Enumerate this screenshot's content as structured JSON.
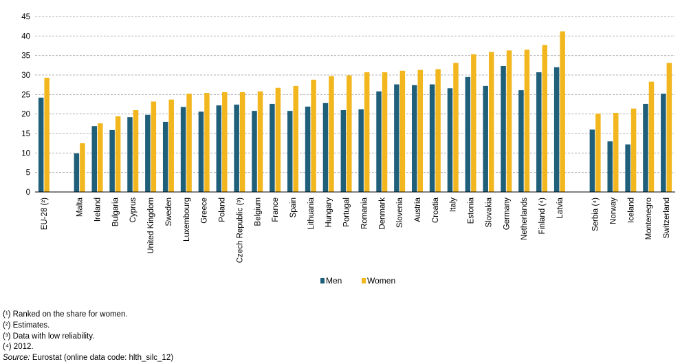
{
  "chart_data": {
    "type": "bar",
    "title": "",
    "xlabel": "",
    "ylabel": "",
    "ylim": [
      0,
      45
    ],
    "yticks": [
      0,
      5,
      10,
      15,
      20,
      25,
      30,
      35,
      40,
      45
    ],
    "grid": true,
    "legend_position": "bottom-center",
    "categories": [
      "EU-28 (²)",
      "Malta",
      "Ireland",
      "Bulgaria",
      "Cyprus",
      "United Kingdom",
      "Sweden",
      "Luxembourg",
      "Greece",
      "Poland",
      "Czech Republic (³)",
      "Belgium",
      "France",
      "Spain",
      "Lithuania",
      "Hungary",
      "Portugal",
      "Romania",
      "Denmark",
      "Slovenia",
      "Austria",
      "Croatia",
      "Italy",
      "Estonia",
      "Slovakia",
      "Germany",
      "Netherlands",
      "Finland (⁴)",
      "Latvia",
      "Serbia (⁴)",
      "Norway",
      "Iceland",
      "Montenegro",
      "Switzerland"
    ],
    "group_breaks_after": [
      "EU-28 (²)",
      "Latvia"
    ],
    "series": [
      {
        "name": "Men",
        "color": "#1f5f7a",
        "values": [
          24.2,
          9.9,
          16.9,
          15.9,
          19.2,
          19.8,
          18.0,
          21.8,
          20.6,
          22.2,
          22.4,
          20.8,
          22.6,
          20.8,
          21.9,
          22.8,
          21.0,
          21.2,
          25.8,
          27.6,
          27.4,
          27.6,
          26.6,
          29.5,
          27.2,
          32.3,
          26.1,
          30.7,
          32.0,
          16.0,
          13.0,
          12.2,
          22.6,
          25.2
        ]
      },
      {
        "name": "Women",
        "color": "#f2b71e",
        "values": [
          29.3,
          12.5,
          17.6,
          19.4,
          21.0,
          23.2,
          23.7,
          25.2,
          25.4,
          25.6,
          25.6,
          25.8,
          26.7,
          27.2,
          28.8,
          29.7,
          29.9,
          30.7,
          30.7,
          31.1,
          31.3,
          31.5,
          33.1,
          35.3,
          35.9,
          36.3,
          36.5,
          37.7,
          41.2,
          20.1,
          20.3,
          21.4,
          28.3,
          33.1
        ]
      }
    ]
  },
  "footnotes": [
    "(¹) Ranked on the share for women.",
    "(²) Estimates.",
    "(³) Data with low reliability.",
    "(⁴) 2012."
  ],
  "source": {
    "label": "Source:",
    "text": " Eurostat (online data code: hlth_silc_12)"
  }
}
